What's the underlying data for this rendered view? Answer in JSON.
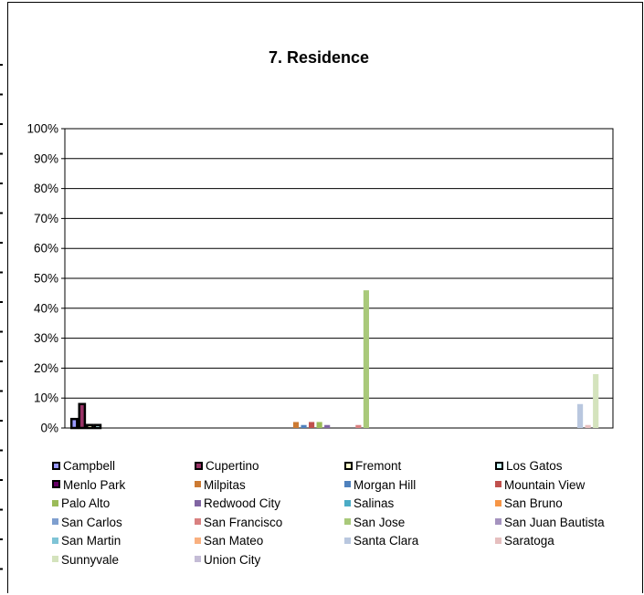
{
  "chart_data": {
    "type": "bar",
    "title": "7. Residence",
    "ylim": [
      0,
      100
    ],
    "yticks": [
      "0%",
      "10%",
      "20%",
      "30%",
      "40%",
      "50%",
      "60%",
      "70%",
      "80%",
      "90%",
      "100%"
    ],
    "grid": true,
    "legend_position": "bottom",
    "groups": 3,
    "series": [
      {
        "name": "Campbell",
        "color": "#9999ff",
        "outlined": true,
        "values": [
          3,
          null,
          null
        ]
      },
      {
        "name": "Cupertino",
        "color": "#993366",
        "outlined": true,
        "values": [
          8,
          null,
          null
        ]
      },
      {
        "name": "Fremont",
        "color": "#ffffcc",
        "outlined": true,
        "values": [
          1,
          null,
          null
        ]
      },
      {
        "name": "Los Gatos",
        "color": "#ccffff",
        "outlined": true,
        "values": [
          1,
          null,
          null
        ]
      },
      {
        "name": "Menlo Park",
        "color": "#660066",
        "outlined": true,
        "values": [
          null,
          null,
          null
        ]
      },
      {
        "name": "Milpitas",
        "color": "#cc7a33",
        "outlined": false,
        "values": [
          null,
          2,
          null
        ]
      },
      {
        "name": "Morgan Hill",
        "color": "#4f81bd",
        "outlined": false,
        "values": [
          null,
          1,
          null
        ]
      },
      {
        "name": "Mountain View",
        "color": "#c0504d",
        "outlined": false,
        "values": [
          null,
          2,
          null
        ]
      },
      {
        "name": "Palo Alto",
        "color": "#9bbb59",
        "outlined": false,
        "values": [
          null,
          2,
          null
        ]
      },
      {
        "name": "Redwood City",
        "color": "#8064a2",
        "outlined": false,
        "values": [
          null,
          1,
          null
        ]
      },
      {
        "name": "Salinas",
        "color": "#4bacc6",
        "outlined": false,
        "values": [
          null,
          null,
          null
        ]
      },
      {
        "name": "San Bruno",
        "color": "#f79646",
        "outlined": false,
        "values": [
          null,
          null,
          null
        ]
      },
      {
        "name": "San Carlos",
        "color": "#7f9fcf",
        "outlined": false,
        "values": [
          null,
          null,
          null
        ]
      },
      {
        "name": "San Francisco",
        "color": "#d98080",
        "outlined": false,
        "values": [
          null,
          1,
          null
        ]
      },
      {
        "name": "San Jose",
        "color": "#a9c97a",
        "outlined": false,
        "values": [
          null,
          46,
          null
        ]
      },
      {
        "name": "San Juan Bautista",
        "color": "#a593bf",
        "outlined": false,
        "values": [
          null,
          null,
          null
        ]
      },
      {
        "name": "San Martin",
        "color": "#7fc4d6",
        "outlined": false,
        "values": [
          null,
          null,
          null
        ]
      },
      {
        "name": "San Mateo",
        "color": "#f9b07f",
        "outlined": false,
        "values": [
          null,
          null,
          null
        ]
      },
      {
        "name": "Santa Clara",
        "color": "#b9c7df",
        "outlined": false,
        "values": [
          null,
          null,
          8
        ]
      },
      {
        "name": "Saratoga",
        "color": "#e6bfbf",
        "outlined": false,
        "values": [
          null,
          null,
          1
        ]
      },
      {
        "name": "Sunnyvale",
        "color": "#d4e3bd",
        "outlined": false,
        "values": [
          null,
          null,
          18
        ]
      },
      {
        "name": "Union City",
        "color": "#c4bcd6",
        "outlined": false,
        "values": [
          null,
          null,
          null
        ]
      }
    ]
  }
}
